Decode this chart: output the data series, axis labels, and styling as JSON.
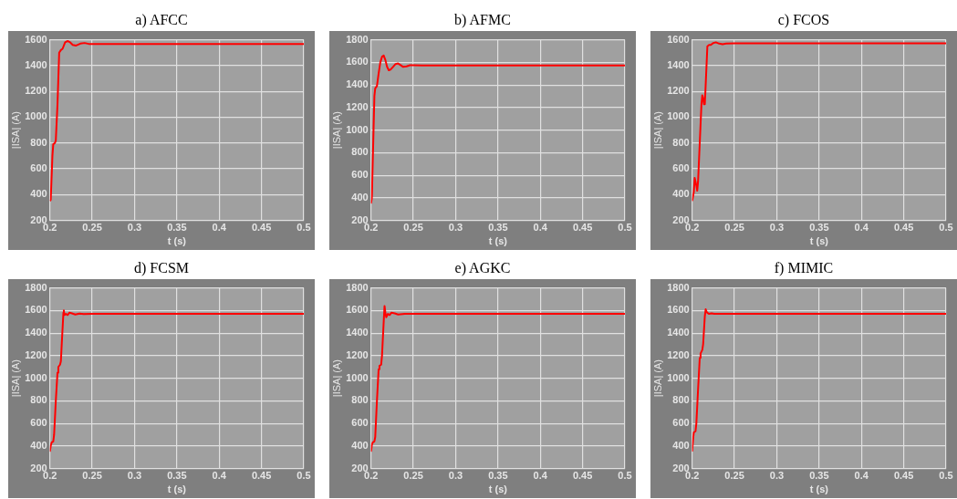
{
  "chart_data": [
    {
      "type": "line",
      "title": "a) AFCC",
      "xlabel": "t (s)",
      "ylabel": "|ISA| (A)",
      "color": "#ff0000",
      "grid": true,
      "xlim": [
        0.2,
        0.5
      ],
      "xticks": [
        0.2,
        0.25,
        0.3,
        0.35,
        0.4,
        0.45,
        0.5
      ],
      "ylim": [
        200,
        1600
      ],
      "yticks": [
        200,
        400,
        600,
        800,
        1000,
        1200,
        1400,
        1600
      ],
      "x": [
        0.2,
        0.201,
        0.203,
        0.204,
        0.206,
        0.207,
        0.209,
        0.211,
        0.213,
        0.215,
        0.218,
        0.221,
        0.224,
        0.227,
        0.231,
        0.236,
        0.241,
        0.246,
        0.25,
        0.5
      ],
      "values": [
        350,
        360,
        700,
        790,
        800,
        820,
        1100,
        1500,
        1520,
        1530,
        1580,
        1590,
        1580,
        1560,
        1555,
        1570,
        1575,
        1568,
        1568,
        1568
      ]
    },
    {
      "type": "line",
      "title": "b) AFMC",
      "xlabel": "t (s)",
      "ylabel": "|ISA| (A)",
      "color": "#ff0000",
      "grid": true,
      "xlim": [
        0.2,
        0.5
      ],
      "xticks": [
        0.2,
        0.25,
        0.3,
        0.35,
        0.4,
        0.45,
        0.5
      ],
      "ylim": [
        200,
        1800
      ],
      "yticks": [
        200,
        400,
        600,
        800,
        1000,
        1200,
        1400,
        1600,
        1800
      ],
      "x": [
        0.2,
        0.201,
        0.203,
        0.204,
        0.205,
        0.207,
        0.209,
        0.211,
        0.213,
        0.215,
        0.217,
        0.219,
        0.221,
        0.223,
        0.226,
        0.229,
        0.232,
        0.235,
        0.238,
        0.242,
        0.246,
        0.25,
        0.26,
        0.5
      ],
      "values": [
        350,
        400,
        1000,
        1300,
        1370,
        1390,
        1500,
        1600,
        1650,
        1660,
        1620,
        1560,
        1530,
        1535,
        1560,
        1585,
        1590,
        1575,
        1560,
        1565,
        1575,
        1575,
        1572,
        1572
      ]
    },
    {
      "type": "line",
      "title": "c) FCOS",
      "xlabel": "t (s)",
      "ylabel": "|ISA| (A)",
      "color": "#ff0000",
      "grid": true,
      "xlim": [
        0.2,
        0.5
      ],
      "xticks": [
        0.2,
        0.25,
        0.3,
        0.35,
        0.4,
        0.45,
        0.5
      ],
      "ylim": [
        200,
        1600
      ],
      "yticks": [
        200,
        400,
        600,
        800,
        1000,
        1200,
        1400,
        1600
      ],
      "x": [
        0.2,
        0.202,
        0.203,
        0.205,
        0.206,
        0.207,
        0.209,
        0.211,
        0.212,
        0.213,
        0.214,
        0.215,
        0.216,
        0.218,
        0.22,
        0.222,
        0.225,
        0.228,
        0.232,
        0.236,
        0.24,
        0.25,
        0.5
      ],
      "values": [
        350,
        420,
        530,
        470,
        430,
        500,
        800,
        1100,
        1170,
        1150,
        1100,
        1100,
        1250,
        1550,
        1560,
        1560,
        1575,
        1580,
        1570,
        1565,
        1570,
        1572,
        1572
      ]
    },
    {
      "type": "line",
      "title": "d) FCSM",
      "xlabel": "t (s)",
      "ylabel": "|ISA| (A)",
      "color": "#ff0000",
      "grid": true,
      "xlim": [
        0.2,
        0.5
      ],
      "xticks": [
        0.2,
        0.25,
        0.3,
        0.35,
        0.4,
        0.45,
        0.5
      ],
      "ylim": [
        200,
        1800
      ],
      "yticks": [
        200,
        400,
        600,
        800,
        1000,
        1200,
        1400,
        1600,
        1800
      ],
      "x": [
        0.2,
        0.201,
        0.202,
        0.204,
        0.205,
        0.207,
        0.209,
        0.21,
        0.212,
        0.213,
        0.214,
        0.216,
        0.2165,
        0.217,
        0.219,
        0.221,
        0.223,
        0.226,
        0.23,
        0.235,
        0.24,
        0.25,
        0.5
      ],
      "values": [
        350,
        400,
        430,
        440,
        500,
        800,
        1050,
        1100,
        1120,
        1150,
        1300,
        1580,
        1600,
        1560,
        1570,
        1560,
        1580,
        1575,
        1565,
        1572,
        1568,
        1570,
        1570
      ]
    },
    {
      "type": "line",
      "title": "e) AGKC",
      "xlabel": "t (s)",
      "ylabel": "|ISA| (A)",
      "color": "#ff0000",
      "grid": true,
      "xlim": [
        0.2,
        0.5
      ],
      "xticks": [
        0.2,
        0.25,
        0.3,
        0.35,
        0.4,
        0.45,
        0.5
      ],
      "ylim": [
        200,
        1800
      ],
      "yticks": [
        200,
        400,
        600,
        800,
        1000,
        1200,
        1400,
        1600,
        1800
      ],
      "x": [
        0.2,
        0.201,
        0.202,
        0.204,
        0.205,
        0.207,
        0.209,
        0.21,
        0.212,
        0.213,
        0.215,
        0.216,
        0.217,
        0.218,
        0.22,
        0.222,
        0.224,
        0.228,
        0.232,
        0.24,
        0.25,
        0.5
      ],
      "values": [
        350,
        410,
        430,
        440,
        480,
        800,
        1080,
        1110,
        1120,
        1200,
        1500,
        1640,
        1580,
        1540,
        1570,
        1560,
        1580,
        1575,
        1565,
        1570,
        1570,
        1570
      ]
    },
    {
      "type": "line",
      "title": "f)  MIMIC",
      "xlabel": "t (s)",
      "ylabel": "|ISA| (A)",
      "color": "#ff0000",
      "grid": true,
      "xlim": [
        0.2,
        0.5
      ],
      "xticks": [
        0.2,
        0.25,
        0.3,
        0.35,
        0.4,
        0.45,
        0.5
      ],
      "ylim": [
        200,
        1800
      ],
      "yticks": [
        200,
        400,
        600,
        800,
        1000,
        1200,
        1400,
        1600,
        1800
      ],
      "x": [
        0.2,
        0.201,
        0.202,
        0.204,
        0.205,
        0.207,
        0.209,
        0.21,
        0.212,
        0.213,
        0.215,
        0.216,
        0.217,
        0.218,
        0.22,
        0.223,
        0.226,
        0.24,
        0.5
      ],
      "values": [
        350,
        450,
        520,
        530,
        600,
        900,
        1180,
        1220,
        1250,
        1300,
        1550,
        1610,
        1590,
        1580,
        1570,
        1575,
        1570,
        1570,
        1570
      ]
    }
  ]
}
